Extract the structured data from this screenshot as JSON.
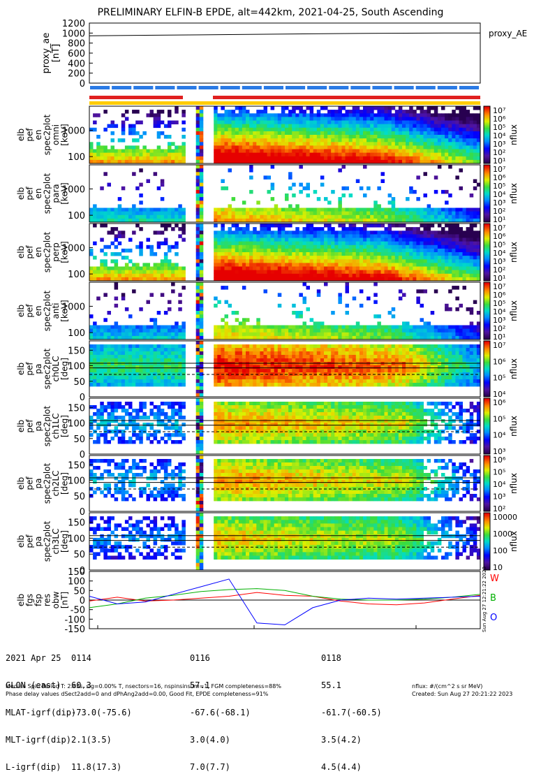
{
  "title": "PRELIMINARY ELFIN-B EPDE, alt=442km, 2021-04-25, South Ascending",
  "chart_data": [
    {
      "type": "line",
      "panel": "proxy_ae",
      "legend": "proxy_AE",
      "ylabel": [
        "proxy_ae",
        "[nT]"
      ],
      "yticks": [
        "1200",
        "1000",
        "800",
        "600",
        "400",
        "200",
        "0"
      ],
      "ylim": [
        0,
        1200
      ],
      "x_minutes": [
        0,
        1,
        2,
        3,
        4,
        5,
        6,
        7
      ],
      "values": [
        945,
        955,
        965,
        975,
        985,
        995,
        1000,
        1002
      ]
    },
    {
      "type": "heatmap",
      "panel": "en_omni",
      "ylabel": [
        "elb",
        "pef",
        "en",
        "spec2plot",
        "omni",
        "[keV]"
      ],
      "yticks": [
        "1000",
        "100"
      ],
      "log_y": true,
      "colorbar": {
        "label": "nflux",
        "ticks": [
          "10⁷",
          "10⁶",
          "10⁵",
          "10⁴",
          "10³",
          "10²",
          "10¹"
        ]
      }
    },
    {
      "type": "heatmap",
      "panel": "en_para",
      "ylabel": [
        "elb",
        "pef",
        "en",
        "spec2plot",
        "para",
        "[keV]"
      ],
      "yticks": [
        "1000",
        "100"
      ],
      "log_y": true,
      "colorbar": {
        "label": "nflux",
        "ticks": [
          "10⁷",
          "10⁶",
          "10⁵",
          "10⁴",
          "10³",
          "10²",
          "10¹"
        ]
      }
    },
    {
      "type": "heatmap",
      "panel": "en_perp",
      "ylabel": [
        "elb",
        "pef",
        "en",
        "spec2plot",
        "perp",
        "[keV]"
      ],
      "yticks": [
        "1000",
        "100"
      ],
      "log_y": true,
      "colorbar": {
        "label": "nflux",
        "ticks": [
          "10⁷",
          "10⁶",
          "10⁵",
          "10⁴",
          "10³",
          "10²",
          "10¹"
        ]
      }
    },
    {
      "type": "heatmap",
      "panel": "en_anti",
      "ylabel": [
        "elb",
        "pef",
        "en",
        "spec2plot",
        "anti",
        "[keV]"
      ],
      "yticks": [
        "1000",
        "100"
      ],
      "log_y": true,
      "colorbar": {
        "label": "nflux",
        "ticks": [
          "10⁷",
          "10⁶",
          "10⁵",
          "10⁴",
          "10³",
          "10²",
          "10¹"
        ]
      }
    },
    {
      "type": "heatmap",
      "panel": "pa_ch0",
      "ylabel": [
        "elb",
        "pef",
        "pa",
        "spec2plot",
        "ch0LC",
        "[deg]"
      ],
      "yticks": [
        "150",
        "100",
        "50",
        "0"
      ],
      "ylim": [
        0,
        180
      ],
      "colorbar": {
        "label": "nflux",
        "ticks": [
          "10⁷",
          "10⁶",
          "10⁵",
          "10⁴"
        ]
      }
    },
    {
      "type": "heatmap",
      "panel": "pa_ch1",
      "ylabel": [
        "elb",
        "pef",
        "pa",
        "spec2plot",
        "ch1LC",
        "[deg]"
      ],
      "yticks": [
        "150",
        "100",
        "50",
        "0"
      ],
      "ylim": [
        0,
        180
      ],
      "colorbar": {
        "label": "nflux",
        "ticks": [
          "10⁶",
          "10⁵",
          "10⁴",
          "10³"
        ]
      }
    },
    {
      "type": "heatmap",
      "panel": "pa_ch2",
      "ylabel": [
        "elb",
        "pef",
        "pa",
        "spec2plot",
        "ch2LC",
        "[deg]"
      ],
      "yticks": [
        "150",
        "100",
        "50",
        "0"
      ],
      "ylim": [
        0,
        180
      ],
      "colorbar": {
        "label": "nflux",
        "ticks": [
          "10⁶",
          "10⁵",
          "10⁴",
          "10³",
          "10²"
        ]
      }
    },
    {
      "type": "heatmap",
      "panel": "pa_ch3",
      "ylabel": [
        "elb",
        "pef",
        "pa",
        "spec2plot",
        "ch3LC",
        "[deg]"
      ],
      "yticks": [
        "150",
        "100",
        "50",
        "0"
      ],
      "ylim": [
        0,
        180
      ],
      "colorbar": {
        "label": "nflux",
        "ticks": [
          "10000",
          "1000",
          "100",
          "10"
        ]
      }
    },
    {
      "type": "line",
      "panel": "fgs",
      "ylabel": [
        "elb",
        "fgs",
        "fsp",
        "res",
        "obw",
        "[nT]"
      ],
      "yticks": [
        "150",
        "100",
        "50",
        "0",
        "-50",
        "-100",
        "-150"
      ],
      "ylim": [
        -150,
        150
      ],
      "x_minutes": [
        0,
        0.5,
        1,
        1.5,
        2,
        2.5,
        3,
        3.5,
        4,
        4.5,
        5,
        5.5,
        6,
        6.5,
        7
      ],
      "series": [
        {
          "name": "W",
          "color": "#ff0000",
          "values": [
            -5,
            15,
            -5,
            0,
            10,
            20,
            40,
            25,
            20,
            -5,
            -20,
            -25,
            -15,
            5,
            25
          ]
        },
        {
          "name": "B",
          "color": "#00b000",
          "values": [
            -40,
            -20,
            10,
            25,
            45,
            55,
            60,
            50,
            20,
            5,
            0,
            0,
            5,
            15,
            30
          ]
        },
        {
          "name": "O",
          "color": "#0000ff",
          "values": [
            20,
            -20,
            -10,
            30,
            70,
            110,
            -120,
            -130,
            -40,
            0,
            10,
            5,
            10,
            15,
            20
          ]
        }
      ]
    }
  ],
  "footer": {
    "col0": [
      "2021 Apr 25",
      "GLON (east)",
      "MLAT-igrf(dip)",
      "MLT-igrf(dip)",
      "L-igrf(dip)"
    ],
    "col1": [
      "0114",
      "60.3",
      "-73.0(-75.6)",
      "2.1(3.5)",
      "11.8(17.3)"
    ],
    "col2": [
      "0116",
      "57.1",
      "-67.6(-68.1)",
      "3.0(4.0)",
      "7.0(7.7)"
    ],
    "col3": [
      "0118",
      "55.1",
      "-61.7(-60.5)",
      "3.5(4.2)",
      "4.5(4.4)"
    ],
    "note1": "Median Spin Period T: 2.85s, sig=0.00% T, nsectors=16, nspinsinsum=1, FGM completeness=88%",
    "note2": "Phase delay values dSect2add=0 and dPhAng2add=0.00, Good Fit, EPDE completeness=91%",
    "units": "nflux: #/(cm^2 s sr MeV)",
    "created": "Created: Sun Aug 27 20:21:22 2023",
    "stamp": "Sun Aug 27 12:21:22 2023"
  }
}
